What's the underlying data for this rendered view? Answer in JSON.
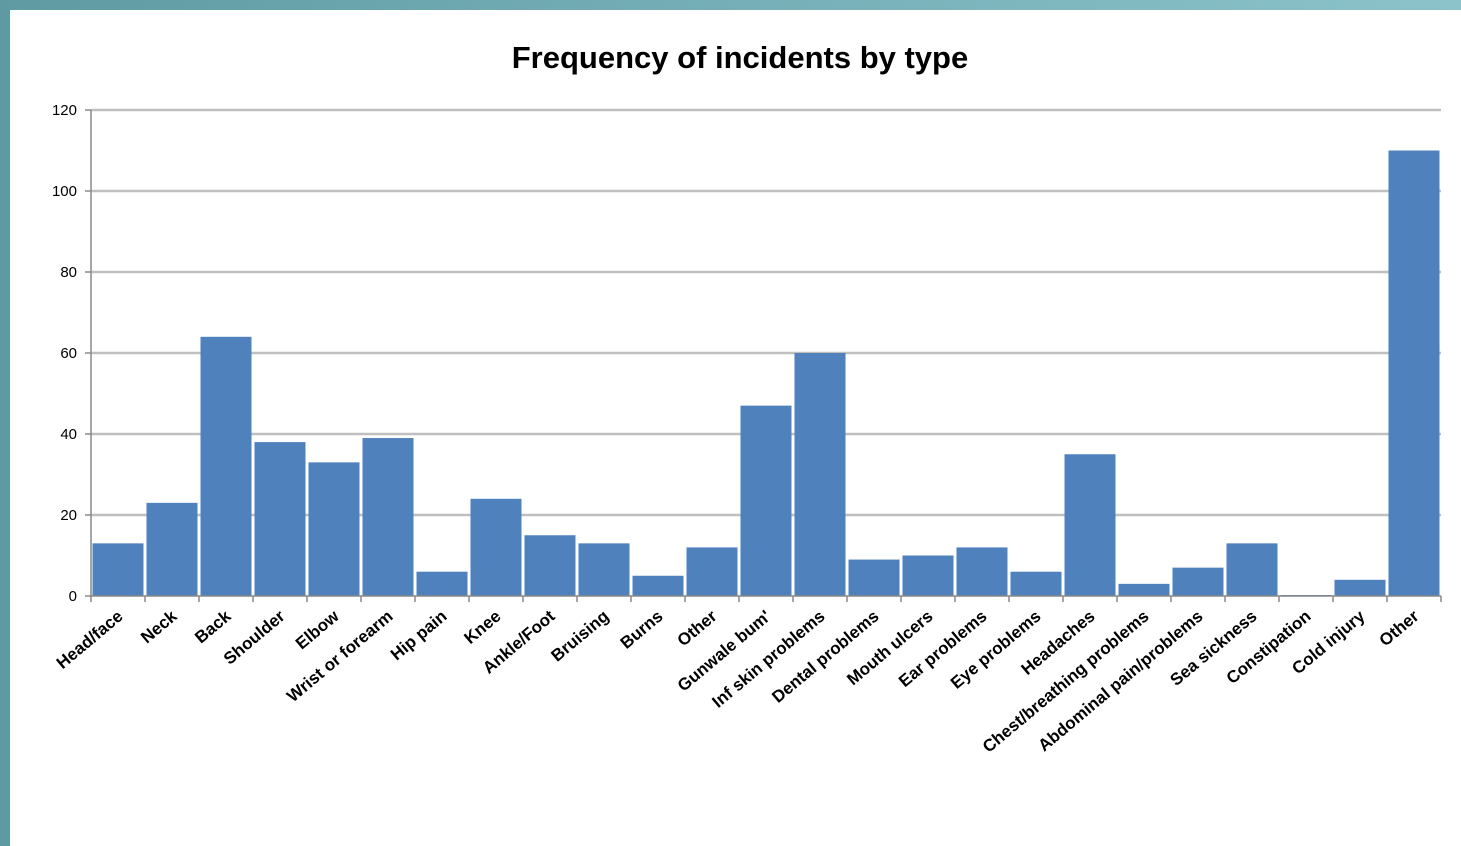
{
  "chart_data": {
    "type": "bar",
    "title": "Frequency of incidents by type",
    "xlabel": "",
    "ylabel": "",
    "ylim": [
      0,
      120
    ],
    "yticks": [
      0,
      20,
      40,
      60,
      80,
      100,
      120
    ],
    "grid": true,
    "legend": "none",
    "categories": [
      "Head/face",
      "Neck",
      "Back",
      "Shoulder",
      "Elbow",
      "Wrist or forearm",
      "Hip pain",
      "Knee",
      "Ankle/Foot",
      "Bruising",
      "Burns",
      "Other",
      "Gunwale bum'",
      "Inf skin problems",
      "Dental problems",
      "Mouth ulcers",
      "Ear problems",
      "Eye problems",
      "Headaches",
      "Chest/breathing problems",
      "Abdominal pain/problems",
      "Sea sickness",
      "Constipation",
      "Cold injury",
      "Other"
    ],
    "values": [
      13,
      23,
      64,
      38,
      33,
      39,
      6,
      24,
      15,
      13,
      5,
      12,
      47,
      60,
      9,
      10,
      12,
      6,
      35,
      3,
      7,
      13,
      0,
      4,
      110
    ],
    "colors": {
      "bar": "#4f81bd",
      "grid": "#bfbfbf",
      "axis": "#888888"
    }
  }
}
